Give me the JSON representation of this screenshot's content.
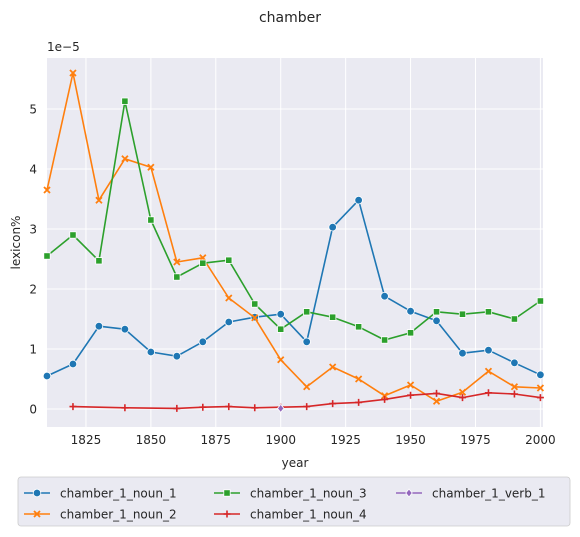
{
  "chart_data": {
    "type": "line",
    "title": "chamber",
    "xlabel": "year",
    "ylabel": "lexicon%",
    "offset_label": "1e−5",
    "xlim": [
      1810,
      2001
    ],
    "ylim": [
      -0.3,
      5.85
    ],
    "xticks": [
      1825,
      1850,
      1875,
      1900,
      1925,
      1950,
      1975,
      2000
    ],
    "yticks": [
      0,
      1,
      2,
      3,
      4,
      5
    ],
    "grid": true,
    "legend_position": "bottom",
    "series": [
      {
        "name": "chamber_1_noun_1",
        "color": "#1f77b4",
        "marker": "circle",
        "points": [
          [
            1810,
            0.55
          ],
          [
            1820,
            0.75
          ],
          [
            1830,
            1.38
          ],
          [
            1840,
            1.33
          ],
          [
            1850,
            0.95
          ],
          [
            1860,
            0.88
          ],
          [
            1870,
            1.12
          ],
          [
            1880,
            1.45
          ],
          [
            1890,
            1.53
          ],
          [
            1900,
            1.58
          ],
          [
            1910,
            1.12
          ],
          [
            1920,
            3.03
          ],
          [
            1930,
            3.48
          ],
          [
            1940,
            1.88
          ],
          [
            1950,
            1.63
          ],
          [
            1960,
            1.47
          ],
          [
            1970,
            0.93
          ],
          [
            1980,
            0.98
          ],
          [
            1990,
            0.77
          ],
          [
            2000,
            0.57
          ]
        ]
      },
      {
        "name": "chamber_1_noun_2",
        "color": "#ff7f0e",
        "marker": "x",
        "points": [
          [
            1810,
            3.65
          ],
          [
            1820,
            5.6
          ],
          [
            1830,
            3.48
          ],
          [
            1840,
            4.17
          ],
          [
            1850,
            4.03
          ],
          [
            1860,
            2.45
          ],
          [
            1870,
            2.52
          ],
          [
            1880,
            1.85
          ],
          [
            1890,
            1.52
          ],
          [
            1900,
            0.82
          ],
          [
            1910,
            0.37
          ],
          [
            1920,
            0.7
          ],
          [
            1930,
            0.5
          ],
          [
            1940,
            0.22
          ],
          [
            1950,
            0.4
          ],
          [
            1960,
            0.13
          ],
          [
            1970,
            0.28
          ],
          [
            1980,
            0.63
          ],
          [
            1990,
            0.37
          ],
          [
            2000,
            0.35
          ]
        ]
      },
      {
        "name": "chamber_1_noun_3",
        "color": "#2ca02c",
        "marker": "square",
        "points": [
          [
            1810,
            2.55
          ],
          [
            1820,
            2.9
          ],
          [
            1830,
            2.47
          ],
          [
            1840,
            5.13
          ],
          [
            1850,
            3.15
          ],
          [
            1860,
            2.2
          ],
          [
            1870,
            2.43
          ],
          [
            1880,
            2.48
          ],
          [
            1890,
            1.75
          ],
          [
            1900,
            1.33
          ],
          [
            1910,
            1.62
          ],
          [
            1920,
            1.53
          ],
          [
            1930,
            1.37
          ],
          [
            1940,
            1.15
          ],
          [
            1950,
            1.27
          ],
          [
            1960,
            1.62
          ],
          [
            1970,
            1.58
          ],
          [
            1980,
            1.62
          ],
          [
            1990,
            1.5
          ],
          [
            2000,
            1.8
          ]
        ]
      },
      {
        "name": "chamber_1_noun_4",
        "color": "#d62728",
        "marker": "plus",
        "points": [
          [
            1820,
            0.04
          ],
          [
            1840,
            0.02
          ],
          [
            1860,
            0.01
          ],
          [
            1870,
            0.03
          ],
          [
            1880,
            0.04
          ],
          [
            1890,
            0.02
          ],
          [
            1900,
            0.03
          ],
          [
            1910,
            0.04
          ],
          [
            1920,
            0.09
          ],
          [
            1930,
            0.11
          ],
          [
            1940,
            0.16
          ],
          [
            1950,
            0.23
          ],
          [
            1960,
            0.26
          ],
          [
            1970,
            0.19
          ],
          [
            1980,
            0.27
          ],
          [
            1990,
            0.25
          ],
          [
            2000,
            0.19
          ]
        ]
      },
      {
        "name": "chamber_1_verb_1",
        "color": "#9467bd",
        "marker": "diamond",
        "points": [
          [
            1900,
            0.01
          ]
        ]
      }
    ]
  }
}
